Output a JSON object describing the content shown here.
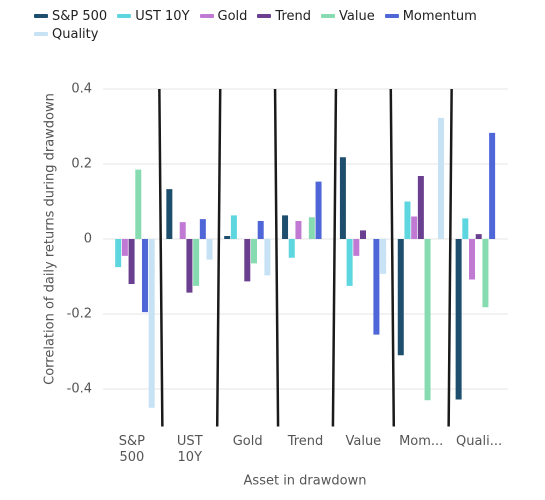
{
  "chart_data": {
    "type": "grouped_bar",
    "x_label": "Asset in drawdown",
    "y_label": "Correlation of daily returns during drawdown",
    "categories": [
      "S&P 500",
      "UST 10Y",
      "Gold",
      "Trend",
      "Value",
      "Mom...",
      "Quali..."
    ],
    "series": [
      {
        "name": "S&P 500",
        "color": "#1d4e6e",
        "values": [
          null,
          0.133,
          0.008,
          0.063,
          0.218,
          -0.31,
          -0.428
        ]
      },
      {
        "name": "UST 10Y",
        "color": "#5dd6df",
        "values": [
          -0.075,
          null,
          0.063,
          -0.05,
          -0.125,
          0.1,
          0.055
        ]
      },
      {
        "name": "Gold",
        "color": "#c17ad4",
        "values": [
          -0.045,
          0.045,
          null,
          0.048,
          -0.045,
          0.06,
          -0.108
        ]
      },
      {
        "name": "Trend",
        "color": "#6a3f8f",
        "values": [
          -0.12,
          -0.143,
          -0.113,
          null,
          0.023,
          0.168,
          0.013
        ]
      },
      {
        "name": "Value",
        "color": "#86dcb0",
        "values": [
          0.185,
          -0.125,
          -0.065,
          0.058,
          null,
          -0.43,
          -0.182
        ]
      },
      {
        "name": "Momentum",
        "color": "#4f66d8",
        "values": [
          -0.195,
          0.053,
          0.048,
          0.153,
          -0.255,
          null,
          0.283
        ]
      },
      {
        "name": "Quality",
        "color": "#c6e2f4",
        "values": [
          -0.45,
          -0.055,
          -0.097,
          0,
          -0.093,
          0.323,
          null
        ]
      }
    ],
    "ylim": [
      -0.5,
      0.4
    ],
    "yticks": [
      -0.4,
      -0.2,
      0,
      0.2,
      0.4
    ],
    "grid": true
  }
}
